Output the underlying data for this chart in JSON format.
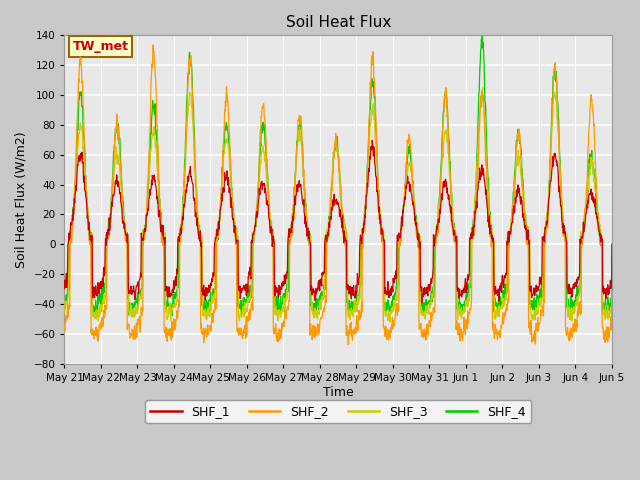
{
  "title": "Soil Heat Flux",
  "ylabel": "Soil Heat Flux (W/m2)",
  "xlabel": "Time",
  "ylim": [
    -80,
    140
  ],
  "annotation_text": "TW_met",
  "series_names": [
    "SHF_1",
    "SHF_2",
    "SHF_3",
    "SHF_4"
  ],
  "series_colors": [
    "#cc0000",
    "#ff9900",
    "#cccc00",
    "#00cc00"
  ],
  "xtick_labels": [
    "May 21",
    "May 22",
    "May 23",
    "May 24",
    "May 25",
    "May 26",
    "May 27",
    "May 28",
    "May 29",
    "May 30",
    "May 31",
    "Jun 1",
    "Jun 2",
    "Jun 3",
    "Jun 4",
    "Jun 5"
  ],
  "fig_facecolor": "#c8c8c8",
  "ax_facecolor": "#e8e8e8",
  "grid_color": "#ffffff"
}
